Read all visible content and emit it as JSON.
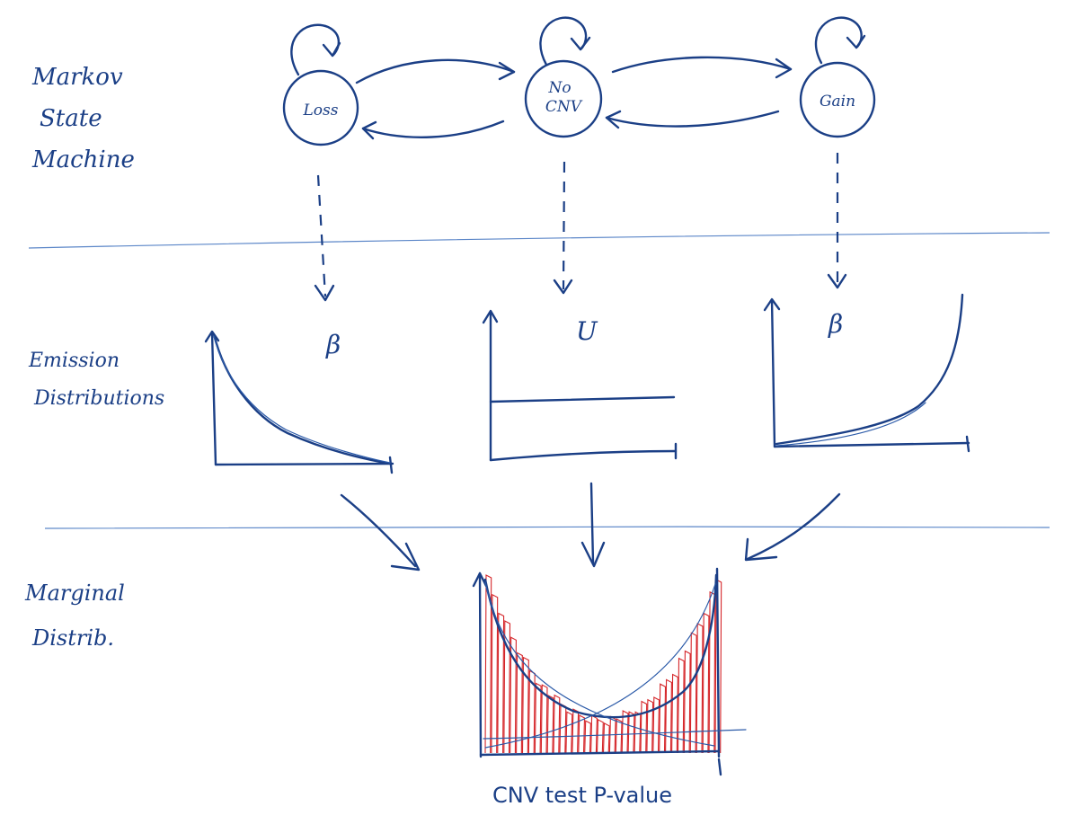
{
  "rows": {
    "state_machine": [
      "Markov",
      "State",
      "Machine"
    ],
    "emission": [
      "Emission",
      "Distributions"
    ],
    "marginal": [
      "Marginal",
      "Distrib."
    ]
  },
  "states": [
    {
      "id": "loss",
      "lines": [
        "Loss"
      ]
    },
    {
      "id": "no-cnv",
      "lines": [
        "No",
        "CNV"
      ]
    },
    {
      "id": "gain",
      "lines": [
        "Gain"
      ]
    }
  ],
  "distributions": [
    {
      "id": "loss",
      "label": "β",
      "shape": "decreasing"
    },
    {
      "id": "no-cnv",
      "label": "U",
      "shape": "uniform"
    },
    {
      "id": "gain",
      "label": "β",
      "shape": "increasing"
    }
  ],
  "caption": "CNV test P-value",
  "colors": {
    "ink": "#1b3f86",
    "divider": "#5b86c8",
    "histogram": "#d5262a",
    "paper": "#ffffff"
  }
}
